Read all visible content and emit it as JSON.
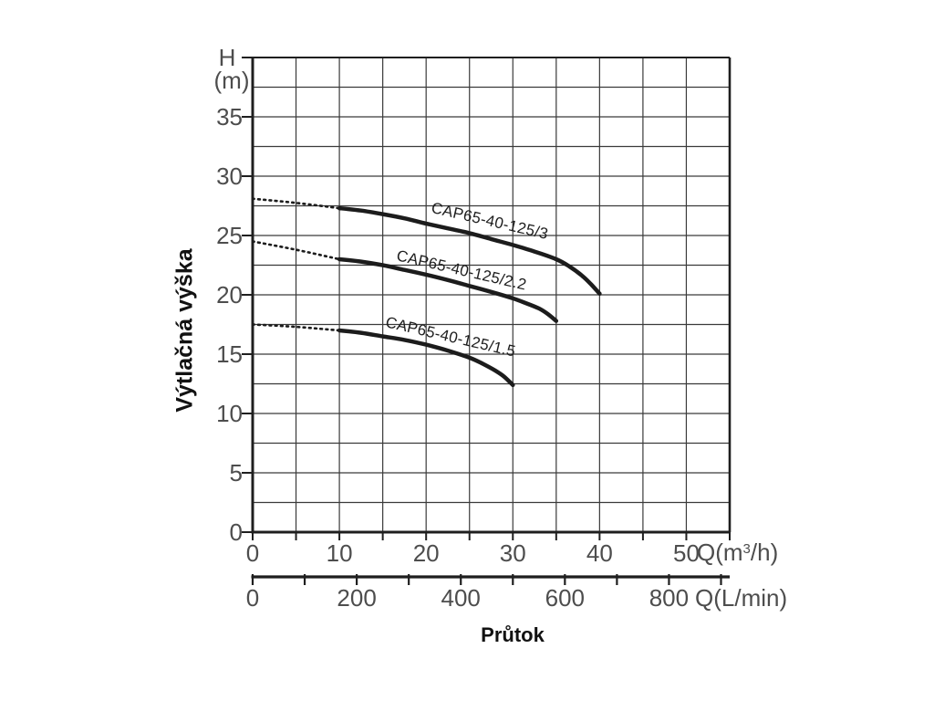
{
  "page": {
    "background": "#ffffff"
  },
  "chart_data": {
    "type": "line",
    "title": "",
    "grid": true,
    "legend": "inline-rotated-labels-on-curves",
    "y_axis": {
      "symbol": "H",
      "unit": "(m)",
      "title": "Výtlačná výška",
      "min": 0,
      "max": 40,
      "tick_step": 5,
      "grid_step": 2.5,
      "tick_values": [
        0,
        5,
        10,
        15,
        20,
        25,
        30,
        35
      ],
      "tick_labels": [
        "0",
        "5",
        "10",
        "15",
        "20",
        "25",
        "30",
        "35"
      ]
    },
    "x_axis_primary": {
      "min": 0,
      "max": 55,
      "tick_step": 5,
      "grid_step": 5,
      "tick_values": [
        0,
        10,
        20,
        30,
        40,
        50
      ],
      "tick_labels": [
        "0",
        "10",
        "20",
        "30",
        "40",
        "50"
      ],
      "unit_prefix": "Q(m",
      "unit_sup": "3",
      "unit_suffix": "/h)"
    },
    "x_axis_secondary": {
      "min": 0,
      "max": 916,
      "tick_step": 100,
      "tick_values": [
        0,
        200,
        400,
        600,
        800
      ],
      "tick_labels": [
        "0",
        "200",
        "400",
        "600",
        "800"
      ],
      "unit_label": "Q(L/min)",
      "title": "Průtok"
    },
    "series": [
      {
        "name": "CAP65-40-125/3",
        "dotted": [
          [
            0,
            28.1
          ],
          [
            5,
            27.75
          ],
          [
            10,
            27.3
          ]
        ],
        "solid": [
          [
            10,
            27.3
          ],
          [
            12.5,
            27.1
          ],
          [
            15,
            26.8
          ],
          [
            17.5,
            26.45
          ],
          [
            20,
            26.0
          ],
          [
            22.5,
            25.6
          ],
          [
            25,
            25.2
          ],
          [
            27.5,
            24.7
          ],
          [
            30,
            24.2
          ],
          [
            32.5,
            23.65
          ],
          [
            35,
            23.0
          ],
          [
            36.5,
            22.4
          ],
          [
            38,
            21.6
          ],
          [
            39,
            20.9
          ],
          [
            40,
            20.1
          ]
        ]
      },
      {
        "name": "CAP65-40-125/2.2",
        "dotted": [
          [
            0,
            24.5
          ],
          [
            5,
            23.8
          ],
          [
            10,
            23.0
          ]
        ],
        "solid": [
          [
            10,
            23.0
          ],
          [
            12.5,
            22.8
          ],
          [
            15,
            22.5
          ],
          [
            17.5,
            22.1
          ],
          [
            20,
            21.7
          ],
          [
            22.5,
            21.25
          ],
          [
            25,
            20.75
          ],
          [
            27.5,
            20.25
          ],
          [
            30,
            19.7
          ],
          [
            31.5,
            19.3
          ],
          [
            33,
            18.85
          ],
          [
            34,
            18.4
          ],
          [
            35,
            17.8
          ]
        ]
      },
      {
        "name": "CAP65-40-125/1.5",
        "dotted": [
          [
            0,
            17.5
          ],
          [
            5,
            17.3
          ],
          [
            10,
            17.0
          ]
        ],
        "solid": [
          [
            10,
            17.0
          ],
          [
            12.5,
            16.8
          ],
          [
            15,
            16.5
          ],
          [
            17.5,
            16.2
          ],
          [
            20,
            15.8
          ],
          [
            22.5,
            15.3
          ],
          [
            25,
            14.7
          ],
          [
            26.5,
            14.2
          ],
          [
            28,
            13.6
          ],
          [
            29,
            13.1
          ],
          [
            30,
            12.4
          ]
        ]
      }
    ],
    "colors": {
      "curve": "#1c1c1c",
      "grid": "#3a3a3a",
      "axis": "#1f1f1f",
      "tick_text": "#4d4d4d",
      "title_text": "#121212"
    }
  }
}
